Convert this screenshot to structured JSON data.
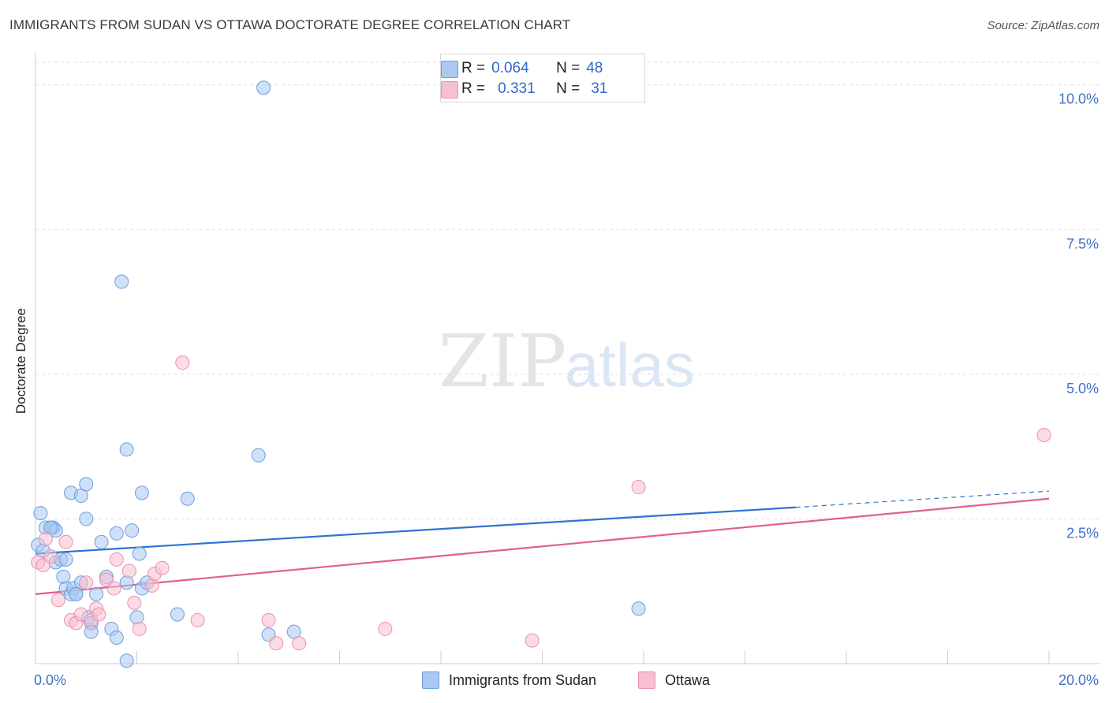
{
  "title": "IMMIGRANTS FROM SUDAN VS OTTAWA DOCTORATE DEGREE CORRELATION CHART",
  "source": "Source: ZipAtlas.com",
  "watermark": {
    "part1": "ZIP",
    "part2": "atlas"
  },
  "colors": {
    "blue_fill": "#aac8f0",
    "blue_stroke": "#6a9ee0",
    "blue_line": "#2f72d0",
    "pink_fill": "#f8bfd0",
    "pink_stroke": "#ec90ad",
    "pink_line": "#e0608e",
    "axis_label": "#3f72c8",
    "grid": "#dddddd"
  },
  "legend_top": {
    "rows": [
      {
        "r_label": "R =",
        "r_value": "0.064",
        "n_label": "N =",
        "n_value": "48",
        "series": "blue"
      },
      {
        "r_label": "R =",
        "r_value": "0.331",
        "n_label": "N =",
        "n_value": "31",
        "series": "pink"
      }
    ]
  },
  "legend_bottom": {
    "items": [
      {
        "label": "Immigrants from Sudan",
        "series": "blue"
      },
      {
        "label": "Ottawa",
        "series": "pink"
      }
    ]
  },
  "chart_data": {
    "type": "scatter",
    "title": "IMMIGRANTS FROM SUDAN VS OTTAWA DOCTORATE DEGREE CORRELATION CHART",
    "xlabel": "",
    "ylabel": "Doctorate Degree",
    "xlim": [
      0,
      20
    ],
    "ylim": [
      0,
      10.5
    ],
    "x_ticks": [
      0,
      20
    ],
    "x_tick_labels": [
      "0.0%",
      "20.0%"
    ],
    "y_ticks": [
      2.5,
      5.0,
      7.5,
      10.0
    ],
    "y_tick_labels": [
      "2.5%",
      "5.0%",
      "7.5%",
      "10.0%"
    ],
    "grid": true,
    "series": [
      {
        "name": "Immigrants from Sudan",
        "color": "blue",
        "trend": {
          "x": [
            0,
            15
          ],
          "y": [
            1.9,
            2.7
          ],
          "dashed_extension": {
            "x": [
              15,
              20
            ],
            "y": [
              2.7,
              2.98
            ]
          }
        },
        "points": [
          [
            0.1,
            2.6
          ],
          [
            0.2,
            2.35
          ],
          [
            0.3,
            2.35
          ],
          [
            0.35,
            2.35
          ],
          [
            0.4,
            2.3
          ],
          [
            0.05,
            2.05
          ],
          [
            0.15,
            1.95
          ],
          [
            0.4,
            1.75
          ],
          [
            0.5,
            1.8
          ],
          [
            0.55,
            1.5
          ],
          [
            0.6,
            1.3
          ],
          [
            0.7,
            1.2
          ],
          [
            0.75,
            1.3
          ],
          [
            0.8,
            1.2
          ],
          [
            0.9,
            1.4
          ],
          [
            1.0,
            2.5
          ],
          [
            1.05,
            0.8
          ],
          [
            1.1,
            0.7
          ],
          [
            1.2,
            1.2
          ],
          [
            1.3,
            2.1
          ],
          [
            1.4,
            1.5
          ],
          [
            1.5,
            0.6
          ],
          [
            1.6,
            2.25
          ],
          [
            1.7,
            6.6
          ],
          [
            1.8,
            1.4
          ],
          [
            1.8,
            3.7
          ],
          [
            1.9,
            2.3
          ],
          [
            2.0,
            0.8
          ],
          [
            2.05,
            1.9
          ],
          [
            2.1,
            1.3
          ],
          [
            2.2,
            1.4
          ],
          [
            2.1,
            2.95
          ],
          [
            1.6,
            0.45
          ],
          [
            1.8,
            0.05
          ],
          [
            0.7,
            2.95
          ],
          [
            0.9,
            2.9
          ],
          [
            1.0,
            3.1
          ],
          [
            1.1,
            0.55
          ],
          [
            0.6,
            1.8
          ],
          [
            0.8,
            1.2
          ],
          [
            2.8,
            0.85
          ],
          [
            3.0,
            2.85
          ],
          [
            4.4,
            3.6
          ],
          [
            4.6,
            0.5
          ],
          [
            4.5,
            9.95
          ],
          [
            5.1,
            0.55
          ],
          [
            11.9,
            0.95
          ],
          [
            0.3,
            2.35
          ]
        ]
      },
      {
        "name": "Ottawa",
        "color": "pink",
        "trend": {
          "x": [
            0,
            20
          ],
          "y": [
            1.2,
            2.85
          ]
        },
        "points": [
          [
            0.05,
            1.75
          ],
          [
            0.15,
            1.7
          ],
          [
            0.2,
            2.15
          ],
          [
            0.3,
            1.85
          ],
          [
            0.45,
            1.1
          ],
          [
            0.6,
            2.1
          ],
          [
            0.7,
            0.75
          ],
          [
            0.8,
            0.7
          ],
          [
            0.9,
            0.85
          ],
          [
            1.0,
            1.4
          ],
          [
            1.1,
            0.75
          ],
          [
            1.2,
            0.95
          ],
          [
            1.25,
            0.85
          ],
          [
            1.4,
            1.45
          ],
          [
            1.55,
            1.3
          ],
          [
            1.6,
            1.8
          ],
          [
            1.85,
            1.6
          ],
          [
            1.95,
            1.05
          ],
          [
            2.05,
            0.6
          ],
          [
            2.3,
            1.35
          ],
          [
            2.35,
            1.55
          ],
          [
            2.5,
            1.65
          ],
          [
            2.9,
            5.2
          ],
          [
            3.2,
            0.75
          ],
          [
            4.6,
            0.75
          ],
          [
            4.75,
            0.35
          ],
          [
            5.2,
            0.35
          ],
          [
            6.9,
            0.6
          ],
          [
            9.8,
            0.4
          ],
          [
            11.9,
            3.05
          ],
          [
            19.9,
            3.95
          ]
        ]
      }
    ]
  }
}
